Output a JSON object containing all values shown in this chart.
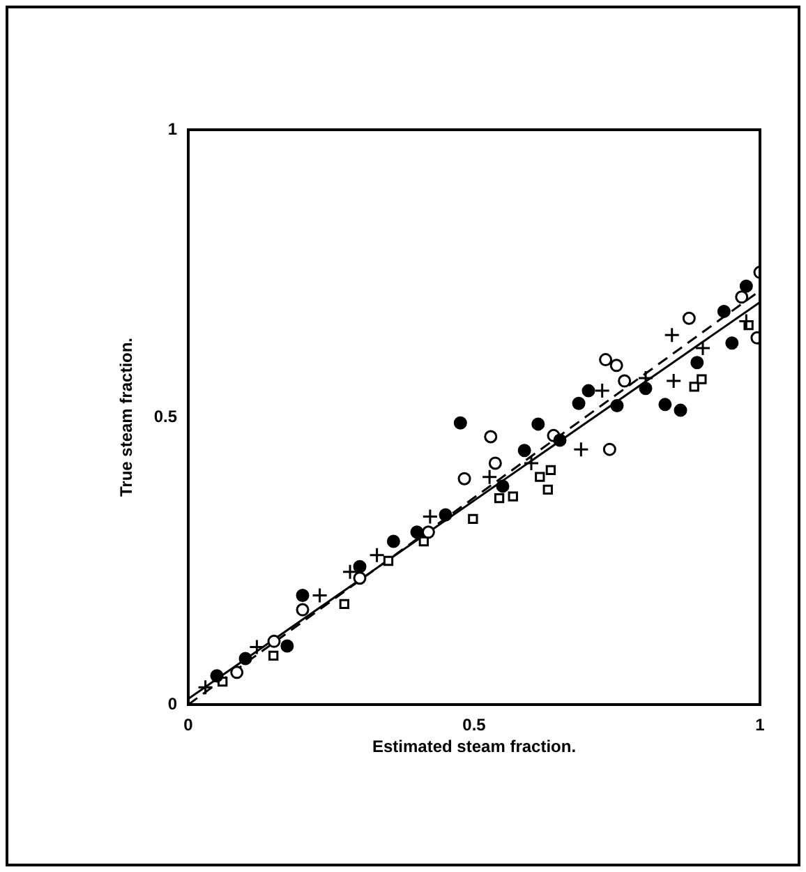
{
  "chart_data": {
    "type": "scatter",
    "xlabel": "Estimated steam fraction.",
    "ylabel": "True steam fraction.",
    "xlim": [
      0,
      1
    ],
    "ylim": [
      0,
      1
    ],
    "xticks": [
      0,
      0.5,
      1
    ],
    "yticks": [
      0,
      0.5,
      1
    ],
    "grid": false,
    "legend": false,
    "series": [
      {
        "color": "#000000",
        "marker": "circle",
        "x": [
          0.05,
          0.1,
          0.173,
          0.2,
          0.3,
          0.359,
          0.4,
          0.45,
          0.476,
          0.55,
          0.588,
          0.612,
          0.65,
          0.683,
          0.7,
          0.75,
          0.8,
          0.834,
          0.861,
          0.89,
          0.937,
          0.951,
          0.976
        ],
        "values": [
          0.05,
          0.08,
          0.102,
          0.19,
          0.24,
          0.284,
          0.3,
          0.33,
          0.49,
          0.38,
          0.442,
          0.488,
          0.46,
          0.524,
          0.546,
          0.52,
          0.55,
          0.522,
          0.512,
          0.595,
          0.684,
          0.629,
          0.728
        ]
      },
      {
        "color": "#ffffff",
        "marker": "circle",
        "x": [
          0.085,
          0.15,
          0.2,
          0.3,
          0.42,
          0.483,
          0.529,
          0.537,
          0.639,
          0.737,
          0.73,
          0.749,
          0.763,
          0.876,
          0.968,
          0.995,
          1.0
        ],
        "values": [
          0.056,
          0.11,
          0.165,
          0.22,
          0.3,
          0.393,
          0.466,
          0.42,
          0.468,
          0.444,
          0.6,
          0.59,
          0.563,
          0.672,
          0.709,
          0.638,
          0.752
        ]
      },
      {
        "color": "#000000",
        "marker": "cross",
        "x": [
          0.03,
          0.12,
          0.23,
          0.283,
          0.33,
          0.423,
          0.527,
          0.6,
          0.687,
          0.724,
          0.8,
          0.846,
          0.849,
          0.9,
          0.976
        ],
        "values": [
          0.03,
          0.1,
          0.19,
          0.231,
          0.26,
          0.327,
          0.396,
          0.42,
          0.444,
          0.546,
          0.568,
          0.643,
          0.563,
          0.62,
          0.667
        ]
      },
      {
        "color": "#ffffff",
        "marker": "square",
        "x": [
          0.06,
          0.149,
          0.273,
          0.35,
          0.412,
          0.498,
          0.544,
          0.568,
          0.615,
          0.629,
          0.634,
          0.885,
          0.898,
          0.98
        ],
        "values": [
          0.04,
          0.085,
          0.175,
          0.25,
          0.284,
          0.323,
          0.359,
          0.362,
          0.396,
          0.374,
          0.408,
          0.553,
          0.566,
          0.66
        ]
      },
      {
        "type": "line",
        "color": "#000000",
        "line_style": "solid",
        "marker": "none",
        "x": [
          0,
          1
        ],
        "values": [
          0.01,
          0.7
        ]
      },
      {
        "type": "line",
        "color": "#000000",
        "line_style": "dashed",
        "marker": "none",
        "x": [
          0,
          1
        ],
        "values": [
          0,
          0.72
        ]
      }
    ]
  }
}
